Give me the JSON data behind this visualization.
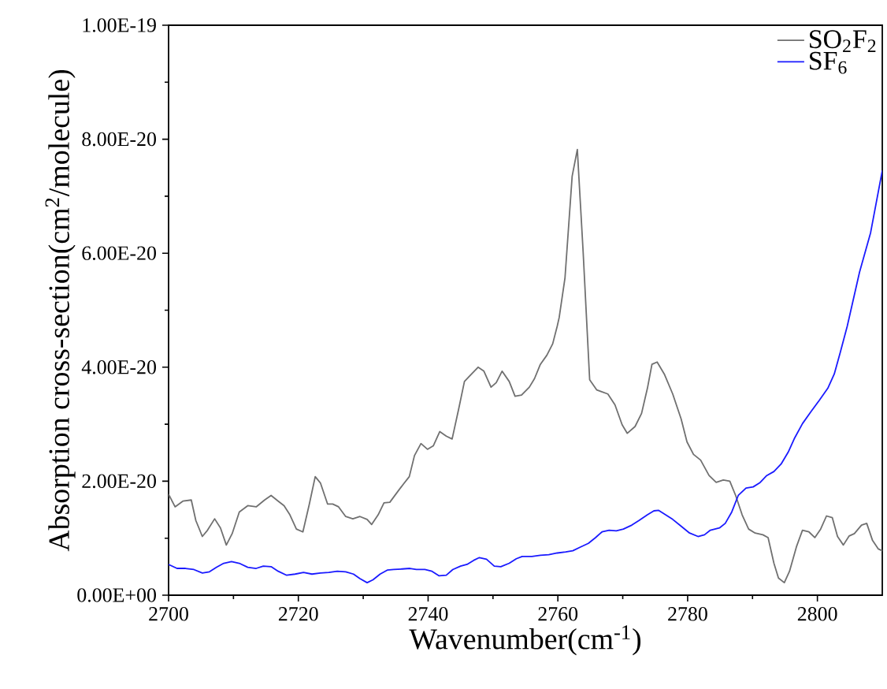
{
  "chart_data": {
    "type": "line",
    "xlabel": "Wavenumber(cm$^{-1}$)",
    "ylabel": "Absorption cross-section(cm$^{2}$/molecule)",
    "xlim": [
      2700,
      2810
    ],
    "xticks": [
      2700,
      2720,
      2740,
      2760,
      2780,
      2800
    ],
    "ylim": [
      0,
      1e-19
    ],
    "yticks": [
      {
        "value": 0,
        "label": "0.00E+00"
      },
      {
        "value": 2e-20,
        "label": "2.00E-20"
      },
      {
        "value": 4e-20,
        "label": "4.00E-20"
      },
      {
        "value": 6e-20,
        "label": "6.00E-20"
      },
      {
        "value": 8e-20,
        "label": "8.00E-20"
      },
      {
        "value": 1e-19,
        "label": "1.00E-19"
      }
    ],
    "legend": "top right",
    "series": [
      {
        "name": "SO$_{2}$F$_{2}$",
        "color": "#707070",
        "x": [
          2700,
          2701,
          2702.2,
          2703.5,
          2704.2,
          2705.2,
          2706,
          2707.1,
          2708,
          2708.9,
          2709.8,
          2710.9,
          2712.2,
          2713.5,
          2714.8,
          2715.8,
          2716.9,
          2717.8,
          2718.7,
          2719.7,
          2720.7,
          2721.7,
          2722.6,
          2723.4,
          2724.5,
          2725.3,
          2726.2,
          2727.3,
          2728.4,
          2729.5,
          2730.6,
          2731.3,
          2732.3,
          2733.2,
          2734.1,
          2735.2,
          2736.2,
          2737.1,
          2737.9,
          2738.9,
          2739.9,
          2740.8,
          2741.8,
          2742.8,
          2743.7,
          2744.7,
          2745.6,
          2746.7,
          2747.7,
          2748.6,
          2749.7,
          2750.5,
          2751.4,
          2752.5,
          2753.4,
          2754.4,
          2755.6,
          2756.4,
          2757.3,
          2758.3,
          2759.2,
          2759.9,
          2760.2,
          2761.1,
          2762.2,
          2763.0,
          2763.9,
          2764.9,
          2766,
          2767.7,
          2768.8,
          2769.9,
          2770.7,
          2771.9,
          2772.9,
          2773.8,
          2774.5,
          2775.3,
          2776.4,
          2777.7,
          2779,
          2779.9,
          2780.9,
          2782,
          2783.3,
          2784.4,
          2785.5,
          2786.5,
          2787.4,
          2788.4,
          2789.4,
          2790.4,
          2791.6,
          2792.4,
          2793.3,
          2794,
          2794.9,
          2795.7,
          2796.8,
          2797.7,
          2798.7,
          2799.6,
          2800.5,
          2801.4,
          2802.3,
          2803.1,
          2804,
          2804.9,
          2805.7,
          2806.8,
          2807.6,
          2808.5,
          2809.4,
          2810
        ],
        "values": [
          1.77e-20,
          1.55e-20,
          1.65e-20,
          1.67e-20,
          1.31e-20,
          1.03e-20,
          1.14e-20,
          1.34e-20,
          1.18e-20,
          8.8e-21,
          1.08e-20,
          1.46e-20,
          1.57e-20,
          1.55e-20,
          1.67e-20,
          1.75e-20,
          1.65e-20,
          1.57e-20,
          1.41e-20,
          1.16e-20,
          1.11e-20,
          1.6e-20,
          2.08e-20,
          1.97e-20,
          1.6e-20,
          1.6e-20,
          1.55e-20,
          1.38e-20,
          1.34e-20,
          1.38e-20,
          1.33e-20,
          1.24e-20,
          1.41e-20,
          1.62e-20,
          1.63e-20,
          1.8e-20,
          1.95e-20,
          2.08e-20,
          2.45e-20,
          2.66e-20,
          2.56e-20,
          2.62e-20,
          2.87e-20,
          2.79e-20,
          2.74e-20,
          3.26e-20,
          3.75e-20,
          3.88e-20,
          4e-20,
          3.93e-20,
          3.65e-20,
          3.73e-20,
          3.93e-20,
          3.75e-20,
          3.49e-20,
          3.51e-20,
          3.65e-20,
          3.8e-20,
          4.05e-20,
          4.21e-20,
          4.41e-20,
          4.72e-20,
          4.87e-20,
          5.57e-20,
          7.35e-20,
          7.82e-20,
          6.01e-20,
          3.78e-20,
          3.6e-20,
          3.53e-20,
          3.34e-20,
          2.99e-20,
          2.84e-20,
          2.96e-20,
          3.19e-20,
          3.63e-20,
          4.05e-20,
          4.09e-20,
          3.88e-20,
          3.53e-20,
          3.09e-20,
          2.69e-20,
          2.47e-20,
          2.37e-20,
          2.1e-20,
          1.98e-20,
          2.02e-20,
          2e-20,
          1.75e-20,
          1.41e-20,
          1.16e-20,
          1.09e-20,
          1.06e-20,
          1.01e-20,
          5.6e-21,
          3e-21,
          2.2e-21,
          4.2e-21,
          8.6e-21,
          1.14e-20,
          1.11e-20,
          1.01e-20,
          1.16e-20,
          1.39e-20,
          1.36e-20,
          1.03e-20,
          8.8e-21,
          1.04e-20,
          1.08e-20,
          1.23e-20,
          1.26e-20,
          9.6e-21,
          8.1e-21,
          7.8e-21
        ]
      },
      {
        "name": "SF$_{6}$",
        "color": "#1a1aff",
        "x": [
          2700,
          2701.3,
          2702.6,
          2703.9,
          2705.2,
          2706.3,
          2707.4,
          2708.5,
          2709.7,
          2710.9,
          2712.2,
          2713.5,
          2714.6,
          2715.8,
          2716.9,
          2718.2,
          2719.5,
          2720.8,
          2722.1,
          2723.4,
          2724.7,
          2726.0,
          2727.3,
          2728.5,
          2729.5,
          2730.6,
          2731.5,
          2732.6,
          2733.7,
          2734.7,
          2736,
          2737.2,
          2738.2,
          2739.5,
          2740.6,
          2741.7,
          2742.8,
          2743.8,
          2745,
          2746,
          2747.0,
          2747.9,
          2749.0,
          2750.2,
          2751.2,
          2752.5,
          2753.6,
          2754.5,
          2756,
          2757.3,
          2758.6,
          2759.9,
          2761.2,
          2762.3,
          2763.4,
          2764.7,
          2765.8,
          2766.8,
          2767.9,
          2769,
          2770.1,
          2771.4,
          2772.5,
          2773.8,
          2774.8,
          2775.5,
          2776.6,
          2777.7,
          2779,
          2780.3,
          2781.6,
          2782.6,
          2783.5,
          2784.9,
          2785.8,
          2786.8,
          2787.8,
          2789.0,
          2790.1,
          2791.1,
          2792.2,
          2793.3,
          2794.4,
          2795.5,
          2796.5,
          2797.7,
          2799.0,
          2800.3,
          2801.6,
          2802.6,
          2803.5,
          2804.6,
          2806.5,
          2808.2,
          2810
        ],
        "values": [
          5.4e-21,
          4.7e-21,
          4.7e-21,
          4.5e-21,
          3.9e-21,
          4.1e-21,
          4.9e-21,
          5.6e-21,
          5.9e-21,
          5.6e-21,
          4.9e-21,
          4.7e-21,
          5.1e-21,
          5e-21,
          4.2e-21,
          3.5e-21,
          3.7e-21,
          4e-21,
          3.7e-21,
          3.9e-21,
          4e-21,
          4.2e-21,
          4.1e-21,
          3.7e-21,
          2.9e-21,
          2.2e-21,
          2.7e-21,
          3.7e-21,
          4.4e-21,
          4.5e-21,
          4.6e-21,
          4.7e-21,
          4.5e-21,
          4.5e-21,
          4.2e-21,
          3.4e-21,
          3.5e-21,
          4.5e-21,
          5.1e-21,
          5.4e-21,
          6.1e-21,
          6.6e-21,
          6.3e-21,
          5.1e-21,
          5e-21,
          5.6e-21,
          6.4e-21,
          6.8e-21,
          6.8e-21,
          7e-21,
          7.1e-21,
          7.4e-21,
          7.6e-21,
          7.8e-21,
          8.4e-21,
          9.1e-21,
          1.01e-20,
          1.11e-20,
          1.14e-20,
          1.13e-20,
          1.16e-20,
          1.23e-20,
          1.31e-20,
          1.41e-20,
          1.48e-20,
          1.49e-20,
          1.41e-20,
          1.33e-20,
          1.21e-20,
          1.09e-20,
          1.03e-20,
          1.06e-20,
          1.14e-20,
          1.18e-20,
          1.26e-20,
          1.46e-20,
          1.75e-20,
          1.88e-20,
          1.9e-20,
          1.97e-20,
          2.1e-20,
          2.17e-20,
          2.3e-20,
          2.51e-20,
          2.76e-20,
          3.01e-20,
          3.22e-20,
          3.42e-20,
          3.63e-20,
          3.88e-20,
          4.25e-20,
          4.72e-20,
          5.67e-20,
          6.36e-20,
          7.45e-20
        ]
      }
    ]
  }
}
